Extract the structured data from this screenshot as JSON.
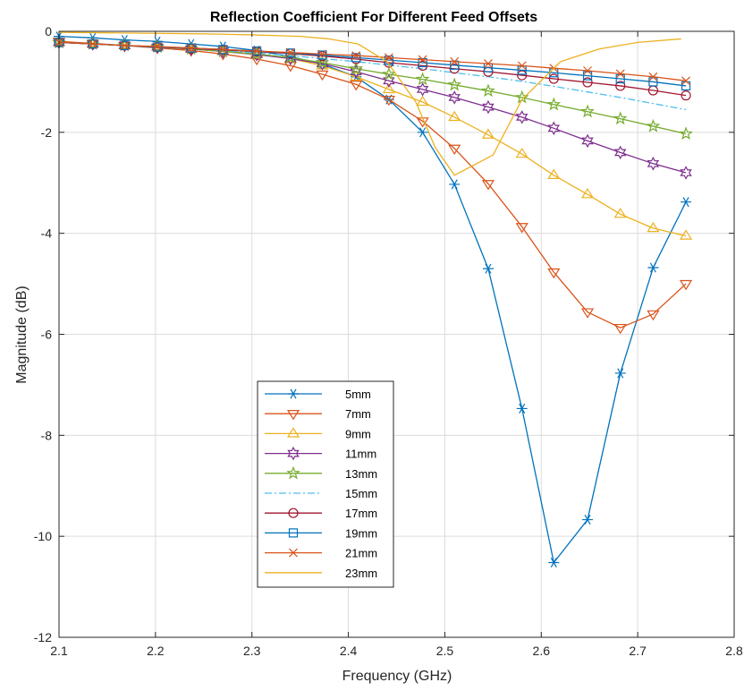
{
  "chart_data": {
    "type": "line",
    "title": "Reflection Coefficient For Different Feed Offsets",
    "xlabel": "Frequency (GHz)",
    "ylabel": "Magnitude (dB)",
    "xlim": [
      2.1,
      2.8
    ],
    "ylim": [
      -12,
      0
    ],
    "xticks": [
      "2.1",
      "2.2",
      "2.3",
      "2.4",
      "2.5",
      "2.6",
      "2.7",
      "2.8"
    ],
    "yticks": [
      "0",
      "-2",
      "-4",
      "-6",
      "-8",
      "-10",
      "-12"
    ],
    "grid": true,
    "legend_position": "lower-left",
    "series": [
      {
        "name": "5mm",
        "color": "#0072BD",
        "marker": "asterisk",
        "dash": "solid",
        "x": [
          2.1,
          2.135,
          2.168,
          2.202,
          2.237,
          2.27,
          2.305,
          2.34,
          2.373,
          2.408,
          2.442,
          2.477,
          2.51,
          2.545,
          2.58,
          2.613,
          2.648,
          2.682,
          2.716,
          2.75
        ],
        "y": [
          -0.1,
          -0.13,
          -0.17,
          -0.2,
          -0.25,
          -0.3,
          -0.38,
          -0.5,
          -0.65,
          -0.9,
          -1.35,
          -2.0,
          -3.03,
          -4.7,
          -7.47,
          -10.52,
          -9.67,
          -6.77,
          -4.68,
          -3.38
        ]
      },
      {
        "name": "7mm",
        "color": "#D95319",
        "marker": "triangle-down",
        "dash": "solid",
        "x": [
          2.1,
          2.135,
          2.168,
          2.202,
          2.237,
          2.27,
          2.305,
          2.34,
          2.373,
          2.408,
          2.442,
          2.477,
          2.51,
          2.545,
          2.58,
          2.613,
          2.648,
          2.682,
          2.716,
          2.75
        ],
        "y": [
          -0.2,
          -0.24,
          -0.28,
          -0.33,
          -0.38,
          -0.45,
          -0.55,
          -0.68,
          -0.85,
          -1.05,
          -1.35,
          -1.78,
          -2.32,
          -3.02,
          -3.87,
          -4.77,
          -5.56,
          -5.87,
          -5.6,
          -5.0
        ]
      },
      {
        "name": "9mm",
        "color": "#EDB120",
        "marker": "triangle-up",
        "dash": "solid",
        "x": [
          2.1,
          2.135,
          2.168,
          2.202,
          2.237,
          2.27,
          2.305,
          2.34,
          2.373,
          2.408,
          2.442,
          2.477,
          2.51,
          2.545,
          2.58,
          2.613,
          2.648,
          2.682,
          2.716,
          2.75
        ],
        "y": [
          -0.22,
          -0.25,
          -0.28,
          -0.31,
          -0.35,
          -0.39,
          -0.45,
          -0.54,
          -0.68,
          -0.9,
          -1.15,
          -1.4,
          -1.7,
          -2.05,
          -2.43,
          -2.85,
          -3.23,
          -3.62,
          -3.9,
          -4.05
        ]
      },
      {
        "name": "11mm",
        "color": "#7E2F8E",
        "marker": "hexagram",
        "dash": "solid",
        "x": [
          2.1,
          2.135,
          2.168,
          2.202,
          2.237,
          2.27,
          2.305,
          2.34,
          2.373,
          2.408,
          2.442,
          2.477,
          2.51,
          2.545,
          2.58,
          2.613,
          2.648,
          2.682,
          2.716,
          2.75
        ],
        "y": [
          -0.22,
          -0.25,
          -0.28,
          -0.31,
          -0.35,
          -0.4,
          -0.46,
          -0.54,
          -0.64,
          -0.8,
          -0.98,
          -1.15,
          -1.31,
          -1.5,
          -1.7,
          -1.92,
          -2.17,
          -2.4,
          -2.62,
          -2.8
        ]
      },
      {
        "name": "13mm",
        "color": "#77AC30",
        "marker": "pentagram",
        "dash": "solid",
        "x": [
          2.1,
          2.135,
          2.168,
          2.202,
          2.237,
          2.27,
          2.305,
          2.34,
          2.373,
          2.408,
          2.442,
          2.477,
          2.51,
          2.545,
          2.58,
          2.613,
          2.648,
          2.682,
          2.716,
          2.75
        ],
        "y": [
          -0.22,
          -0.25,
          -0.28,
          -0.31,
          -0.35,
          -0.4,
          -0.45,
          -0.52,
          -0.62,
          -0.74,
          -0.85,
          -0.95,
          -1.06,
          -1.18,
          -1.31,
          -1.45,
          -1.59,
          -1.73,
          -1.88,
          -2.03
        ]
      },
      {
        "name": "15mm",
        "color": "#4DBEEE",
        "marker": "none",
        "dash": "dashdot",
        "x": [
          2.1,
          2.135,
          2.168,
          2.202,
          2.237,
          2.27,
          2.305,
          2.34,
          2.373,
          2.408,
          2.442,
          2.477,
          2.51,
          2.545,
          2.58,
          2.613,
          2.648,
          2.682,
          2.716,
          2.75
        ],
        "y": [
          -0.22,
          -0.25,
          -0.28,
          -0.31,
          -0.34,
          -0.38,
          -0.43,
          -0.48,
          -0.54,
          -0.6,
          -0.67,
          -0.74,
          -0.82,
          -0.9,
          -0.99,
          -1.09,
          -1.2,
          -1.31,
          -1.43,
          -1.55
        ]
      },
      {
        "name": "17mm",
        "color": "#A2142F",
        "marker": "circle",
        "dash": "solid",
        "x": [
          2.1,
          2.135,
          2.168,
          2.202,
          2.237,
          2.27,
          2.305,
          2.34,
          2.373,
          2.408,
          2.442,
          2.477,
          2.51,
          2.545,
          2.58,
          2.613,
          2.648,
          2.682,
          2.716,
          2.75
        ],
        "y": [
          -0.22,
          -0.25,
          -0.28,
          -0.31,
          -0.34,
          -0.37,
          -0.4,
          -0.44,
          -0.49,
          -0.55,
          -0.62,
          -0.68,
          -0.74,
          -0.8,
          -0.87,
          -0.94,
          -1.01,
          -1.08,
          -1.17,
          -1.27
        ]
      },
      {
        "name": "19mm",
        "color": "#0072BD",
        "marker": "square",
        "dash": "solid",
        "x": [
          2.1,
          2.135,
          2.168,
          2.202,
          2.237,
          2.27,
          2.305,
          2.34,
          2.373,
          2.408,
          2.442,
          2.477,
          2.51,
          2.545,
          2.58,
          2.613,
          2.648,
          2.682,
          2.716,
          2.75
        ],
        "y": [
          -0.22,
          -0.25,
          -0.28,
          -0.31,
          -0.33,
          -0.36,
          -0.39,
          -0.43,
          -0.47,
          -0.52,
          -0.57,
          -0.62,
          -0.67,
          -0.72,
          -0.77,
          -0.82,
          -0.88,
          -0.94,
          -1.0,
          -1.08
        ]
      },
      {
        "name": "21mm",
        "color": "#D95319",
        "marker": "x",
        "dash": "solid",
        "x": [
          2.1,
          2.135,
          2.168,
          2.202,
          2.237,
          2.27,
          2.305,
          2.34,
          2.373,
          2.408,
          2.442,
          2.477,
          2.51,
          2.545,
          2.58,
          2.613,
          2.648,
          2.682,
          2.716,
          2.75
        ],
        "y": [
          -0.22,
          -0.25,
          -0.28,
          -0.3,
          -0.33,
          -0.36,
          -0.39,
          -0.42,
          -0.45,
          -0.48,
          -0.52,
          -0.56,
          -0.6,
          -0.64,
          -0.68,
          -0.73,
          -0.78,
          -0.84,
          -0.9,
          -0.98
        ]
      },
      {
        "name": "23mm",
        "color": "#EDB120",
        "marker": "none",
        "dash": "solid",
        "x": [
          2.1,
          2.15,
          2.2,
          2.25,
          2.3,
          2.35,
          2.38,
          2.41,
          2.44,
          2.47,
          2.49,
          2.51,
          2.55,
          2.58,
          2.62,
          2.66,
          2.7,
          2.745
        ],
        "y": [
          -0.02,
          -0.03,
          -0.04,
          -0.05,
          -0.07,
          -0.1,
          -0.15,
          -0.25,
          -0.6,
          -1.4,
          -2.3,
          -2.85,
          -2.45,
          -1.35,
          -0.6,
          -0.35,
          -0.22,
          -0.15
        ]
      }
    ]
  }
}
